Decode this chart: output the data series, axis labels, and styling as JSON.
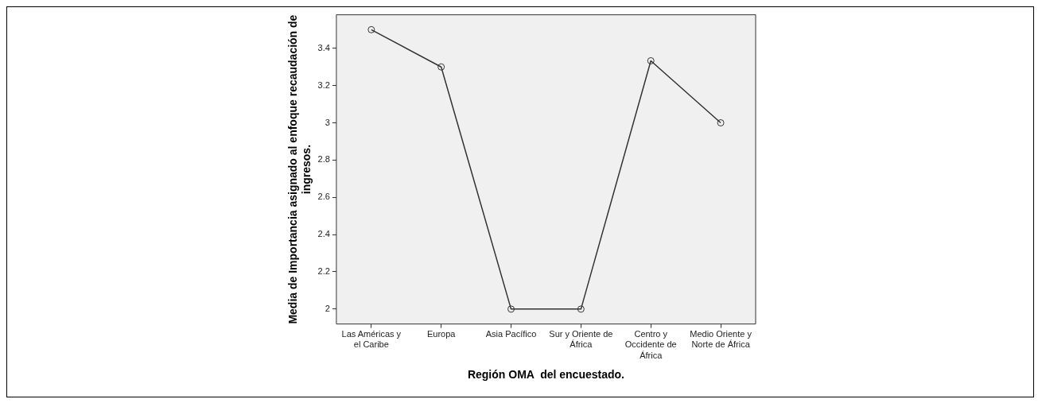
{
  "chart_data": {
    "type": "line",
    "xlabel": "Región OMA  del encuestado.",
    "ylabel": "Media de Importancia asignado al enfoque recaudación de ingresos.",
    "categories": [
      "Las Américas y el Caribe",
      "Europa",
      "Asia Pacífico",
      "Sur y Oriente de África",
      "Centro y Occidente de África",
      "Medio Oriente y Norte de África"
    ],
    "series": [
      {
        "color": "#333333",
        "values": [
          3.5,
          3.3,
          2,
          2,
          3.333,
          3
        ]
      }
    ],
    "ylim": [
      1.92,
      3.58
    ],
    "yticks": [
      2,
      2.2,
      2.4,
      2.6,
      2.8,
      3,
      3.2,
      3.4
    ],
    "grid": false,
    "legend": false,
    "marker": "circle",
    "line_style": "solid"
  }
}
